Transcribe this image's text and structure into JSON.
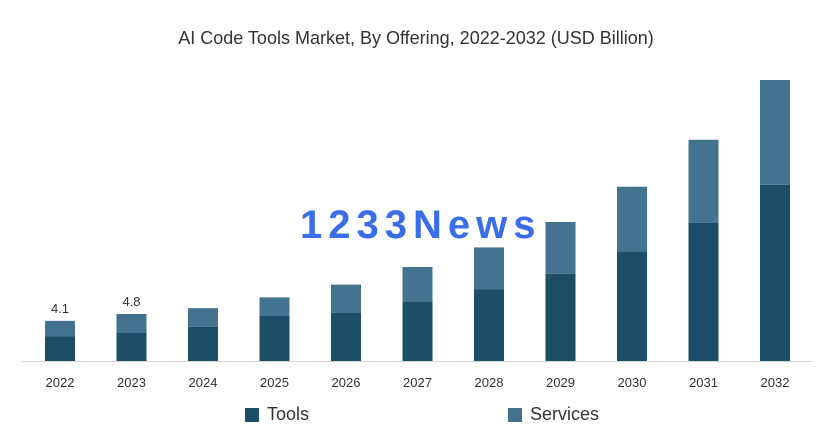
{
  "title": "AI Code Tools Market, By Offering, 2022-2032 (USD Billion)",
  "watermark_text": "1233News",
  "colors": {
    "tools": "#1c4e67",
    "services": "#44738f",
    "axis": "#d6d6d6",
    "text": "#333333",
    "watermark": "#3a6ee8"
  },
  "chart_data": {
    "type": "bar",
    "stacked": true,
    "title": "AI Code Tools Market, By Offering, 2022-2032 (USD Billion)",
    "xlabel": "",
    "ylabel": "",
    "categories": [
      "2022",
      "2023",
      "2024",
      "2025",
      "2026",
      "2027",
      "2028",
      "2029",
      "2030",
      "2031",
      "2032"
    ],
    "series": [
      {
        "name": "Tools",
        "values": [
          2.5,
          2.9,
          3.5,
          4.6,
          4.9,
          6.1,
          7.3,
          8.9,
          11.2,
          14.1,
          18.0
        ]
      },
      {
        "name": "Services",
        "values": [
          1.6,
          1.9,
          1.9,
          1.9,
          2.9,
          3.5,
          4.3,
          5.3,
          6.6,
          8.5,
          10.7
        ]
      }
    ],
    "data_labels": [
      {
        "category": "2022",
        "text": "4.1"
      },
      {
        "category": "2023",
        "text": "4.8"
      }
    ],
    "ylim": [
      0,
      28.7
    ],
    "grid": false,
    "legend_position": "bottom"
  }
}
